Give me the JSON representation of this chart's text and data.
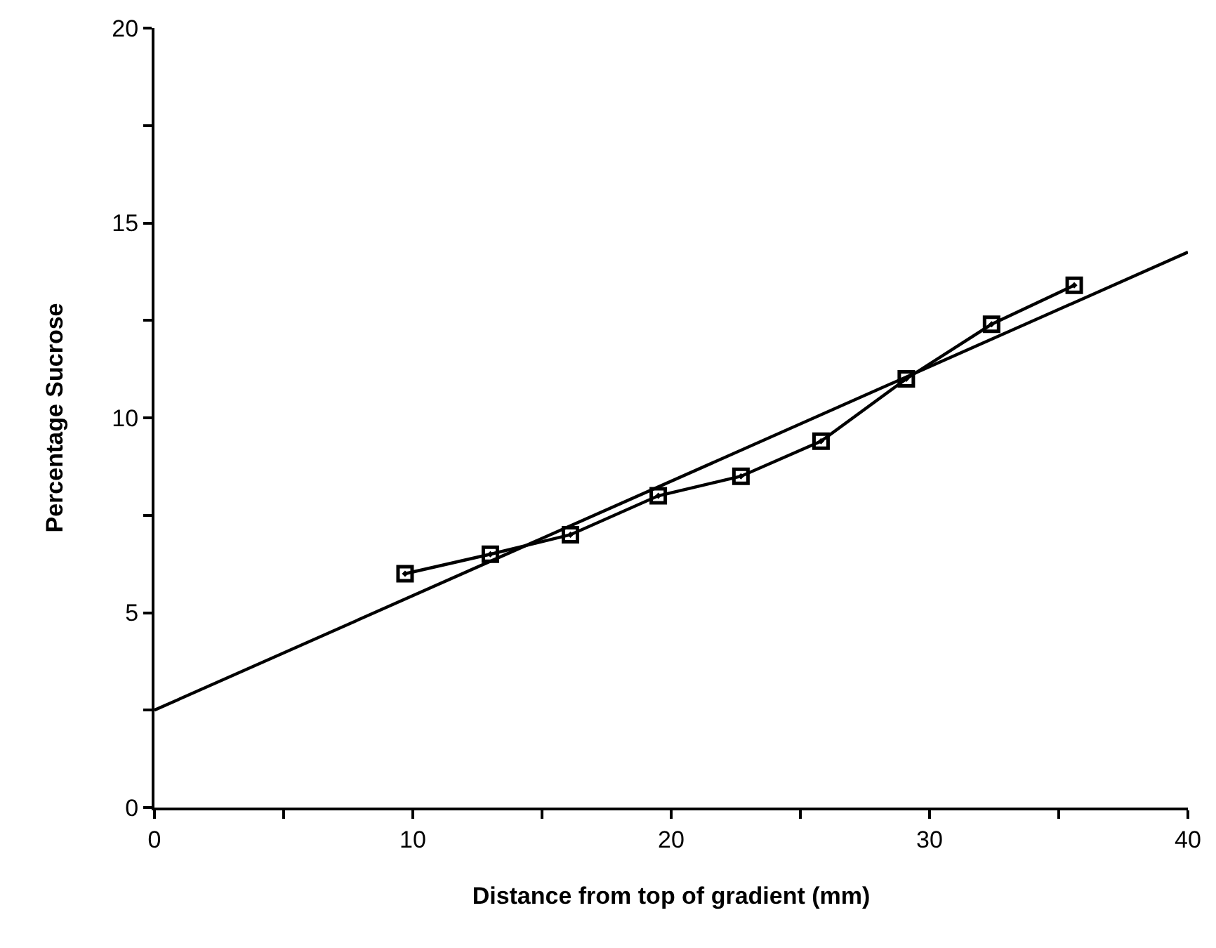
{
  "chart_data": {
    "type": "line",
    "xlabel": "Distance from top of gradient (mm)",
    "ylabel": "Percentage Sucrose",
    "xlim": [
      0,
      40
    ],
    "ylim": [
      0,
      20
    ],
    "xticks": [
      0,
      {
        "value": 5,
        "label": null
      },
      10,
      {
        "value": 15,
        "label": null
      },
      20,
      {
        "value": 25,
        "label": null
      },
      30,
      {
        "value": 35,
        "label": null
      },
      40
    ],
    "yticks": [
      0,
      {
        "value": 2.5,
        "label": null
      },
      5,
      {
        "value": 7.5,
        "label": null
      },
      10,
      {
        "value": 12.5,
        "label": null
      },
      15,
      {
        "value": 17.5,
        "label": null
      },
      20
    ],
    "series": [
      {
        "marker": "square",
        "color": "#000000",
        "x": [
          9.7,
          13.0,
          16.1,
          19.5,
          22.7,
          25.8,
          29.1,
          32.4,
          35.6
        ],
        "values": [
          6.0,
          6.5,
          7.0,
          8.0,
          8.5,
          9.4,
          11.0,
          12.4,
          13.4
        ]
      },
      {
        "marker": "none",
        "color": "#000000",
        "x": [
          0,
          40
        ],
        "values": [
          2.5,
          14.25
        ]
      }
    ]
  }
}
